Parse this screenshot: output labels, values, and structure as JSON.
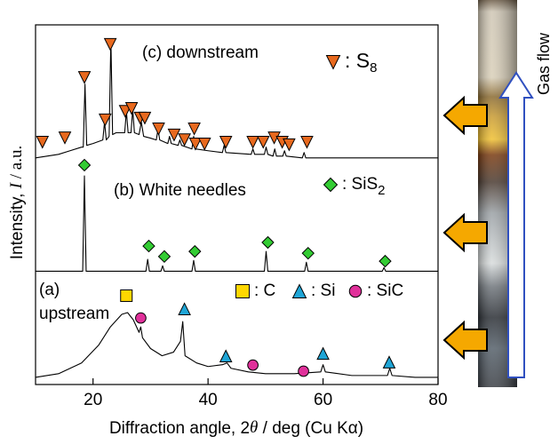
{
  "chart_data": {
    "type": "line",
    "x_label": [
      "Diffraction angle, 2",
      "θ",
      " / deg (Cu Kα)"
    ],
    "y_label": [
      "Intensity, ",
      "I",
      " / a.u."
    ],
    "xlim": [
      10,
      80
    ],
    "xticks": [
      20,
      40,
      60,
      80
    ],
    "ylim": [
      0,
      100
    ],
    "series": [
      {
        "type": "line",
        "name_lines": [
          "(c) downstream"
        ],
        "color": "#000000",
        "x": [
          10,
          12,
          14,
          16,
          18,
          18.3,
          18.6,
          18.9,
          20,
          21.7,
          22,
          22.3,
          22.8,
          23.1,
          23.4,
          24,
          25.5,
          25.8,
          26.1,
          26.6,
          26.9,
          27.2,
          28,
          28.4,
          28.8,
          30,
          31,
          31.3,
          31.6,
          33,
          33.3,
          33.6,
          34.8,
          35.1,
          35.4,
          37.2,
          37.5,
          37.8,
          40,
          42.5,
          42.8,
          43.1,
          47.5,
          47.8,
          48.1,
          49.8,
          50.1,
          50.4,
          51.3,
          51.6,
          51.9,
          53,
          53.3,
          53.6,
          56.4,
          56.7,
          57,
          60,
          70,
          80
        ],
        "values": [
          63,
          63.5,
          64,
          65,
          66,
          66,
          83.5,
          66.5,
          67,
          68,
          73,
          68,
          69,
          96,
          69.5,
          70,
          70,
          76,
          70,
          70,
          76.5,
          70,
          69.5,
          73,
          69,
          68.5,
          68,
          71,
          68,
          67,
          69,
          67,
          66.5,
          68,
          66.5,
          65.5,
          69,
          65.5,
          65,
          64.5,
          66.5,
          64.5,
          64,
          65.5,
          64,
          64,
          66,
          64,
          63.5,
          65.5,
          63.5,
          63.5,
          65,
          63.5,
          63,
          64.5,
          63,
          63,
          63,
          63
        ]
      },
      {
        "type": "line",
        "name_lines": [
          "(b) White needles"
        ],
        "color": "#000000",
        "x": [
          10,
          18.2,
          18.5,
          18.8,
          29.2,
          29.5,
          29.8,
          31.8,
          32.1,
          32.4,
          37.2,
          37.5,
          37.8,
          49.8,
          50.1,
          50.4,
          56.8,
          57.1,
          57.4,
          70.3,
          70.6,
          70.9,
          80
        ],
        "values": [
          31.5,
          31.5,
          58,
          31.5,
          31.5,
          34.8,
          31.5,
          31.5,
          33,
          31.5,
          31.5,
          34.5,
          31.5,
          31.5,
          37,
          31.5,
          31.5,
          34,
          31.5,
          31.5,
          32.5,
          31.5,
          31.5
        ]
      },
      {
        "type": "line",
        "name_lines": [
          "(a)",
          "upstream"
        ],
        "color": "#000000",
        "x": [
          10,
          14,
          18,
          21,
          23,
          25,
          26,
          27,
          28,
          28.3,
          28.6,
          30,
          32,
          34,
          35.2,
          35.6,
          36,
          38,
          40,
          42.5,
          43.3,
          44,
          47,
          50,
          55,
          59.6,
          60,
          60.4,
          65,
          71.2,
          71.6,
          72,
          76,
          80
        ],
        "values": [
          2,
          3,
          6,
          11,
          16,
          19.5,
          20,
          18,
          14.5,
          16,
          13,
          10,
          8,
          9,
          12,
          17.5,
          8,
          6,
          5,
          5.5,
          6,
          4.5,
          3.5,
          3,
          3,
          3.5,
          5.5,
          3.5,
          2.5,
          2.5,
          4.5,
          2.5,
          2,
          2
        ]
      },
      {
        "type": "scatter",
        "marker": "triangle-down",
        "color": "#e8691e",
        "name": ": S",
        "name_subscript": "8",
        "x": [
          11.2,
          15.1,
          18.5,
          22.1,
          23,
          25.6,
          26.7,
          28.2,
          29,
          31.4,
          34.1,
          35.9,
          37.6,
          37.8,
          39.4,
          43.1,
          47.8,
          49.6,
          51.5,
          52.9,
          54.1,
          57.2
        ],
        "values": [
          67.4,
          68.6,
          85.4,
          73.6,
          94.6,
          76,
          76.8,
          74.1,
          74.1,
          71.1,
          69.4,
          68.1,
          71.1,
          66.9,
          66.9,
          67.4,
          67.4,
          67.4,
          68.6,
          67.4,
          66.7,
          67.4
        ]
      },
      {
        "type": "scatter",
        "marker": "diamond",
        "color": "#33cc33",
        "name": ": SiS",
        "name_subscript": "2",
        "x": [
          18.5,
          29.7,
          32.4,
          37.7,
          50.4,
          57.4,
          70.8
        ],
        "values": [
          61,
          38.5,
          35.6,
          37,
          39.5,
          36.5,
          34.3
        ]
      },
      {
        "type": "scatter",
        "marker": "square",
        "color": "#ffd700",
        "name": ": C",
        "x": [
          25.8
        ],
        "values": [
          24.7
        ]
      },
      {
        "type": "scatter",
        "marker": "triangle-up",
        "color": "#1fa5d6",
        "name": ": Si",
        "x": [
          35.9,
          43.1,
          60,
          71.5
        ],
        "values": [
          21,
          7.9,
          8.6,
          6.2
        ]
      },
      {
        "type": "scatter",
        "marker": "circle",
        "color": "#e0309a",
        "name": ": SiC",
        "x": [
          28.3,
          47.8,
          56.6
        ],
        "values": [
          18.5,
          5.4,
          3.7
        ]
      }
    ]
  },
  "photo": {
    "label": "Gas flow"
  }
}
